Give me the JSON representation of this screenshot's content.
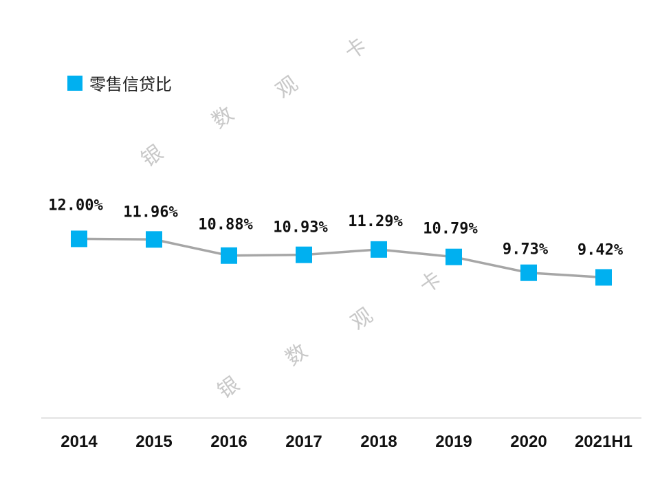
{
  "chart_data": {
    "type": "line",
    "categories": [
      "2014",
      "2015",
      "2016",
      "2017",
      "2018",
      "2019",
      "2020",
      "2021H1"
    ],
    "series": [
      {
        "name": "零售信贷比",
        "values": [
          12.0,
          11.96,
          10.88,
          10.93,
          11.29,
          10.79,
          9.73,
          9.42
        ],
        "labels": [
          "12.00%",
          "11.96%",
          "10.88%",
          "10.93%",
          "11.29%",
          "10.79%",
          "9.73%",
          "9.42%"
        ]
      }
    ],
    "ylim": [
      0,
      14
    ],
    "grid": false,
    "legend_position": "top-left",
    "colors": {
      "marker": "#00B0F0",
      "line": "#A6A6A6",
      "axis": "#D9D9D9"
    }
  },
  "watermark": [
    "银",
    "数",
    "观",
    "卡"
  ]
}
